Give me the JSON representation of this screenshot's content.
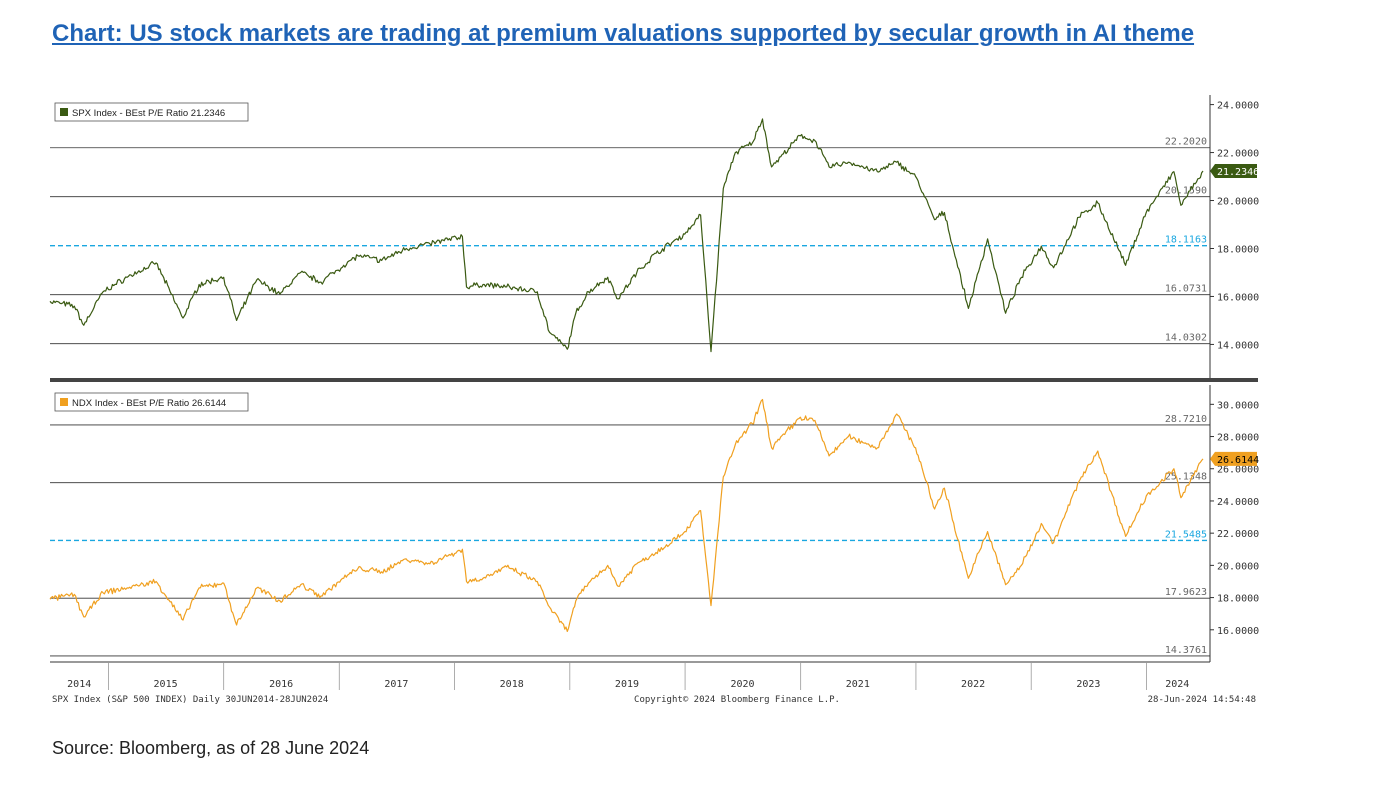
{
  "title": "Chart: US stock markets are trading at premium valuations supported by secular growth in AI theme",
  "source": "Source: Bloomberg, as of 28 June 2024",
  "footer": {
    "left": "SPX Index (S&P 500 INDEX)  Daily 30JUN2014-28JUN2024",
    "center": "Copyright© 2024 Bloomberg Finance L.P.",
    "right": "28-Jun-2024 14:54:48"
  },
  "colors": {
    "spx": "#3a5a12",
    "ndx": "#f0a020",
    "mean_line": "#1aa7e0",
    "band_line": "#333333",
    "title": "#1f63b6"
  },
  "chart_data": [
    {
      "type": "line",
      "legend": "SPX Index - BEst P/E Ratio 21.2346",
      "last_value_label": "21.2346",
      "x_ticks": [
        "2014",
        "2015",
        "2016",
        "2017",
        "2018",
        "2019",
        "2020",
        "2021",
        "2022",
        "2023",
        "2024"
      ],
      "y_ticks": [
        "14.0000",
        "16.0000",
        "18.0000",
        "20.0000",
        "22.0000",
        "24.0000"
      ],
      "ylim": [
        12.6,
        24.4
      ],
      "ref_lines": [
        {
          "value": 22.202,
          "label": "22.2020",
          "style": "solid"
        },
        {
          "value": 20.159,
          "label": "20.1590",
          "style": "solid"
        },
        {
          "value": 18.1163,
          "label": "18.1163",
          "style": "dashed"
        },
        {
          "value": 16.0731,
          "label": "16.0731",
          "style": "solid"
        },
        {
          "value": 14.0302,
          "label": "14.0302",
          "style": "solid"
        }
      ],
      "series": [
        {
          "x": [
            "2014-06-30",
            "2014-09-15",
            "2014-10-15",
            "2014-12-15",
            "2015-03-01",
            "2015-06-01",
            "2015-08-25",
            "2015-10-15",
            "2016-01-01",
            "2016-02-11",
            "2016-04-15",
            "2016-06-27",
            "2016-09-01",
            "2016-11-04",
            "2017-01-15",
            "2017-03-01",
            "2017-05-15",
            "2017-08-01",
            "2017-10-15",
            "2018-01-26",
            "2018-02-08",
            "2018-04-01",
            "2018-06-15",
            "2018-09-20",
            "2018-10-29",
            "2018-12-24",
            "2019-01-20",
            "2019-03-01",
            "2019-05-01",
            "2019-06-03",
            "2019-08-01",
            "2019-10-01",
            "2019-12-31",
            "2020-02-19",
            "2020-03-23",
            "2020-05-01",
            "2020-06-08",
            "2020-08-01",
            "2020-09-02",
            "2020-10-01",
            "2020-12-31",
            "2021-02-15",
            "2021-04-01",
            "2021-06-01",
            "2021-09-01",
            "2021-11-01",
            "2021-12-31",
            "2022-03-01",
            "2022-04-01",
            "2022-06-16",
            "2022-08-16",
            "2022-10-12",
            "2022-12-01",
            "2023-02-02",
            "2023-03-13",
            "2023-06-01",
            "2023-07-31",
            "2023-10-27",
            "2023-12-31",
            "2024-03-28",
            "2024-04-19",
            "2024-06-28"
          ],
          "y": [
            15.8,
            15.6,
            14.8,
            16.2,
            16.8,
            17.4,
            15.1,
            16.5,
            16.8,
            15.0,
            16.7,
            16.1,
            17.0,
            16.6,
            17.3,
            17.7,
            17.5,
            18.0,
            18.2,
            18.5,
            16.4,
            16.5,
            16.4,
            16.2,
            14.5,
            13.8,
            15.3,
            16.2,
            16.8,
            15.9,
            17.0,
            17.8,
            18.6,
            19.4,
            13.7,
            20.5,
            22.0,
            22.4,
            23.4,
            21.4,
            22.7,
            22.5,
            21.4,
            21.6,
            21.2,
            21.6,
            21.0,
            19.2,
            19.5,
            15.5,
            18.4,
            15.3,
            16.8,
            18.1,
            17.2,
            19.3,
            19.9,
            17.3,
            19.5,
            21.2,
            19.8,
            21.23
          ]
        }
      ]
    },
    {
      "type": "line",
      "legend": "NDX Index - BEst P/E Ratio 26.6144",
      "last_value_label": "26.6144",
      "x_ticks": [
        "2014",
        "2015",
        "2016",
        "2017",
        "2018",
        "2019",
        "2020",
        "2021",
        "2022",
        "2023",
        "2024"
      ],
      "y_ticks": [
        "16.0000",
        "18.0000",
        "20.0000",
        "22.0000",
        "24.0000",
        "26.0000",
        "28.0000",
        "30.0000"
      ],
      "ylim": [
        14.0,
        31.2
      ],
      "ref_lines": [
        {
          "value": 28.721,
          "label": "28.7210",
          "style": "solid"
        },
        {
          "value": 25.1348,
          "label": "25.1348",
          "style": "solid"
        },
        {
          "value": 21.5485,
          "label": "21.5485",
          "style": "dashed"
        },
        {
          "value": 17.9623,
          "label": "17.9623",
          "style": "solid"
        },
        {
          "value": 14.3761,
          "label": "14.3761",
          "style": "solid"
        }
      ],
      "series": [
        {
          "x": [
            "2014-06-30",
            "2014-09-15",
            "2014-10-15",
            "2014-12-15",
            "2015-03-01",
            "2015-06-01",
            "2015-08-25",
            "2015-10-15",
            "2016-01-01",
            "2016-02-11",
            "2016-04-15",
            "2016-06-27",
            "2016-09-01",
            "2016-11-04",
            "2017-01-15",
            "2017-03-01",
            "2017-05-15",
            "2017-08-01",
            "2017-10-15",
            "2018-01-26",
            "2018-02-08",
            "2018-04-01",
            "2018-06-15",
            "2018-09-20",
            "2018-10-29",
            "2018-12-24",
            "2019-01-20",
            "2019-03-01",
            "2019-05-01",
            "2019-06-03",
            "2019-08-01",
            "2019-10-01",
            "2019-12-31",
            "2020-02-19",
            "2020-03-23",
            "2020-05-01",
            "2020-06-08",
            "2020-08-01",
            "2020-09-02",
            "2020-10-01",
            "2020-12-31",
            "2021-02-15",
            "2021-04-01",
            "2021-06-01",
            "2021-09-01",
            "2021-11-01",
            "2021-12-31",
            "2022-03-01",
            "2022-04-01",
            "2022-06-16",
            "2022-08-16",
            "2022-10-12",
            "2022-12-01",
            "2023-02-02",
            "2023-03-13",
            "2023-06-01",
            "2023-07-31",
            "2023-10-27",
            "2023-12-31",
            "2024-03-28",
            "2024-04-19",
            "2024-06-28"
          ],
          "y": [
            17.9,
            18.2,
            16.8,
            18.3,
            18.6,
            19.0,
            16.6,
            18.6,
            18.9,
            16.3,
            18.6,
            17.8,
            18.8,
            18.1,
            19.2,
            19.8,
            19.6,
            20.4,
            20.1,
            21.0,
            19.0,
            19.2,
            19.9,
            19.0,
            17.4,
            15.9,
            17.8,
            18.9,
            20.0,
            18.7,
            20.1,
            20.8,
            22.1,
            23.4,
            17.5,
            25.5,
            27.5,
            28.8,
            30.3,
            27.3,
            29.2,
            29.0,
            26.8,
            28.0,
            27.3,
            29.4,
            27.3,
            23.5,
            24.8,
            19.2,
            22.1,
            18.8,
            20.0,
            22.6,
            21.4,
            25.2,
            27.1,
            21.8,
            24.3,
            26.0,
            24.2,
            26.61
          ]
        }
      ]
    }
  ]
}
